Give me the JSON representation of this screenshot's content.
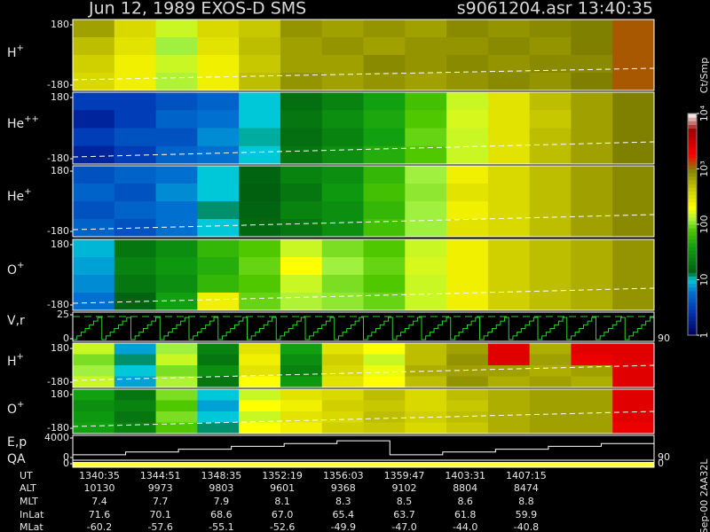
{
  "chart_data": {
    "type": "spectrogram",
    "title": "Jun 12, 1989   EXOS-D SMS",
    "file_label": "s9061204.asr  13:40:35",
    "footer": "Sep-00 2AA32L",
    "panels": [
      {
        "type": "heatmap",
        "label": "H",
        "label_sup": "+",
        "ylim": [
          -180,
          180
        ],
        "yticks": [
          -180,
          180
        ],
        "values": [
          [
            700,
            350,
            150,
            350,
            450,
            800,
            700,
            800,
            700,
            900,
            800,
            900,
            1000,
            1200
          ],
          [
            500,
            300,
            120,
            300,
            500,
            700,
            800,
            700,
            800,
            800,
            900,
            800,
            1000,
            1200
          ],
          [
            400,
            250,
            150,
            250,
            450,
            700,
            700,
            900,
            800,
            900,
            800,
            900,
            900,
            1200
          ],
          [
            350,
            250,
            130,
            250,
            500,
            800,
            700,
            800,
            700,
            800,
            900,
            800,
            1000,
            1200
          ]
        ]
      },
      {
        "type": "heatmap",
        "label": "He",
        "label_sup": "++",
        "ylim": [
          -180,
          180
        ],
        "yticks": [
          -180,
          180
        ],
        "values": [
          [
            3,
            3,
            4,
            5,
            10,
            18,
            25,
            40,
            70,
            150,
            300,
            500,
            700,
            1000
          ],
          [
            2,
            3,
            5,
            6,
            10,
            20,
            30,
            45,
            80,
            160,
            300,
            450,
            700,
            1000
          ],
          [
            3,
            4,
            4,
            7,
            11,
            18,
            25,
            40,
            90,
            150,
            300,
            500,
            700,
            1000
          ],
          [
            2,
            3,
            5,
            6,
            10,
            20,
            30,
            50,
            80,
            150,
            300,
            500,
            700,
            1000
          ]
        ]
      },
      {
        "type": "heatmap",
        "label": "He",
        "label_sup": "+",
        "ylim": [
          -180,
          180
        ],
        "yticks": [
          -180,
          180
        ],
        "values": [
          [
            4,
            5,
            6,
            10,
            15,
            25,
            30,
            60,
            120,
            250,
            350,
            500,
            700,
            900
          ],
          [
            5,
            4,
            7,
            10,
            14,
            20,
            35,
            70,
            110,
            300,
            350,
            500,
            700,
            900
          ],
          [
            4,
            5,
            6,
            12,
            15,
            25,
            30,
            60,
            120,
            250,
            350,
            500,
            700,
            900
          ],
          [
            5,
            4,
            6,
            10,
            16,
            20,
            30,
            70,
            120,
            300,
            350,
            500,
            700,
            900
          ]
        ]
      },
      {
        "type": "heatmap",
        "label": "O",
        "label_sup": "+",
        "ylim": [
          -180,
          180
        ],
        "yticks": [
          -180,
          180
        ],
        "values": [
          [
            9,
            20,
            30,
            60,
            80,
            150,
            100,
            80,
            150,
            250,
            400,
            500,
            600,
            800
          ],
          [
            8,
            25,
            35,
            50,
            90,
            200,
            120,
            90,
            160,
            250,
            400,
            500,
            600,
            800
          ],
          [
            7,
            20,
            30,
            60,
            80,
            150,
            100,
            80,
            150,
            250,
            400,
            500,
            600,
            800
          ],
          [
            6,
            15,
            40,
            250,
            90,
            130,
            110,
            90,
            150,
            250,
            400,
            500,
            600,
            800
          ]
        ]
      },
      {
        "type": "line",
        "label": "V,r",
        "color": "#30d030",
        "ylim": [
          0,
          25
        ],
        "yticks": [
          0,
          25
        ],
        "y2ticks": [
          90
        ]
      },
      {
        "type": "heatmap",
        "label": "H",
        "label_sup": "+",
        "ylim": [
          -180,
          180
        ],
        "yticks": [
          -180,
          180
        ],
        "values": [
          [
            150,
            8,
            120,
            25,
            300,
            40,
            300,
            200,
            500,
            700,
            2500,
            600,
            2500,
            2500
          ],
          [
            100,
            12,
            150,
            20,
            250,
            30,
            400,
            150,
            500,
            800,
            2500,
            700,
            2200,
            2500
          ],
          [
            120,
            10,
            100,
            30,
            300,
            25,
            350,
            180,
            600,
            700,
            700,
            600,
            700,
            2500
          ],
          [
            150,
            8,
            130,
            20,
            200,
            35,
            300,
            200,
            500,
            800,
            600,
            700,
            600,
            2500
          ]
        ]
      },
      {
        "type": "heatmap",
        "label": "O",
        "label_sup": "+",
        "ylim": [
          -180,
          180
        ],
        "yticks": [
          -180,
          180
        ],
        "values": [
          [
            40,
            20,
            100,
            10,
            150,
            300,
            350,
            500,
            350,
            500,
            600,
            700,
            700,
            2500
          ],
          [
            30,
            25,
            80,
            8,
            200,
            250,
            400,
            450,
            350,
            450,
            600,
            700,
            700,
            2500
          ],
          [
            35,
            20,
            100,
            10,
            150,
            300,
            350,
            500,
            400,
            500,
            600,
            700,
            700,
            2500
          ],
          [
            40,
            25,
            80,
            12,
            200,
            250,
            400,
            450,
            350,
            450,
            600,
            700,
            700,
            2200
          ]
        ]
      },
      {
        "type": "line",
        "label": "E,p",
        "color": "#ffffff",
        "ylim": [
          0,
          4000
        ],
        "yticks": [
          0,
          4000
        ],
        "y2ticks": [
          90
        ]
      },
      {
        "type": "bar",
        "label": "QA",
        "color": "#ffff40",
        "ylim": [
          0,
          1
        ],
        "yticks": [
          0
        ],
        "y2ticks": [
          0
        ]
      }
    ],
    "colorbar": {
      "label": "Ct/Smp",
      "log": true,
      "clim": [
        1,
        10000
      ],
      "ticks": [
        {
          "value": 1,
          "label": "1"
        },
        {
          "value": 10,
          "label": "10"
        },
        {
          "value": 100,
          "label": "100"
        },
        {
          "value": 1000,
          "label": "10³"
        },
        {
          "value": 10000,
          "label": "10⁴"
        }
      ],
      "colormap": [
        {
          "value": 1,
          "color": "#000058"
        },
        {
          "value": 2.5,
          "color": "#0030b0"
        },
        {
          "value": 6,
          "color": "#0070d0"
        },
        {
          "value": 10,
          "color": "#00c8d8"
        },
        {
          "value": 14,
          "color": "#006010"
        },
        {
          "value": 40,
          "color": "#10a010"
        },
        {
          "value": 80,
          "color": "#50c800"
        },
        {
          "value": 120,
          "color": "#a0f040"
        },
        {
          "value": 200,
          "color": "#ffff00"
        },
        {
          "value": 450,
          "color": "#c8c800"
        },
        {
          "value": 1000,
          "color": "#808000"
        },
        {
          "value": 1800,
          "color": "#ff0000"
        },
        {
          "value": 5000,
          "color": "#a00000"
        },
        {
          "value": 10000,
          "color": "#ffffff"
        }
      ]
    },
    "ephemeris": {
      "labels": [
        "UT",
        "ALT",
        "MLT",
        "InLat",
        "MLat"
      ],
      "rows": [
        [
          "1340:35",
          "1344:51",
          "1348:35",
          "1352:19",
          "1356:03",
          "1359:47",
          "1403:31",
          "1407:15"
        ],
        [
          "10130",
          "9973",
          "9803",
          "9601",
          "9368",
          "9102",
          "8804",
          "8474"
        ],
        [
          "7.4",
          "7.7",
          "7.9",
          "8.1",
          "8.3",
          "8.5",
          "8.6",
          "8.8"
        ],
        [
          "71.6",
          "70.1",
          "68.6",
          "67.0",
          "65.4",
          "63.7",
          "61.8",
          "59.9"
        ],
        [
          "-60.2",
          "-57.6",
          "-55.1",
          "-52.6",
          "-49.9",
          "-47.0",
          "-44.0",
          "-40.8"
        ]
      ]
    }
  }
}
